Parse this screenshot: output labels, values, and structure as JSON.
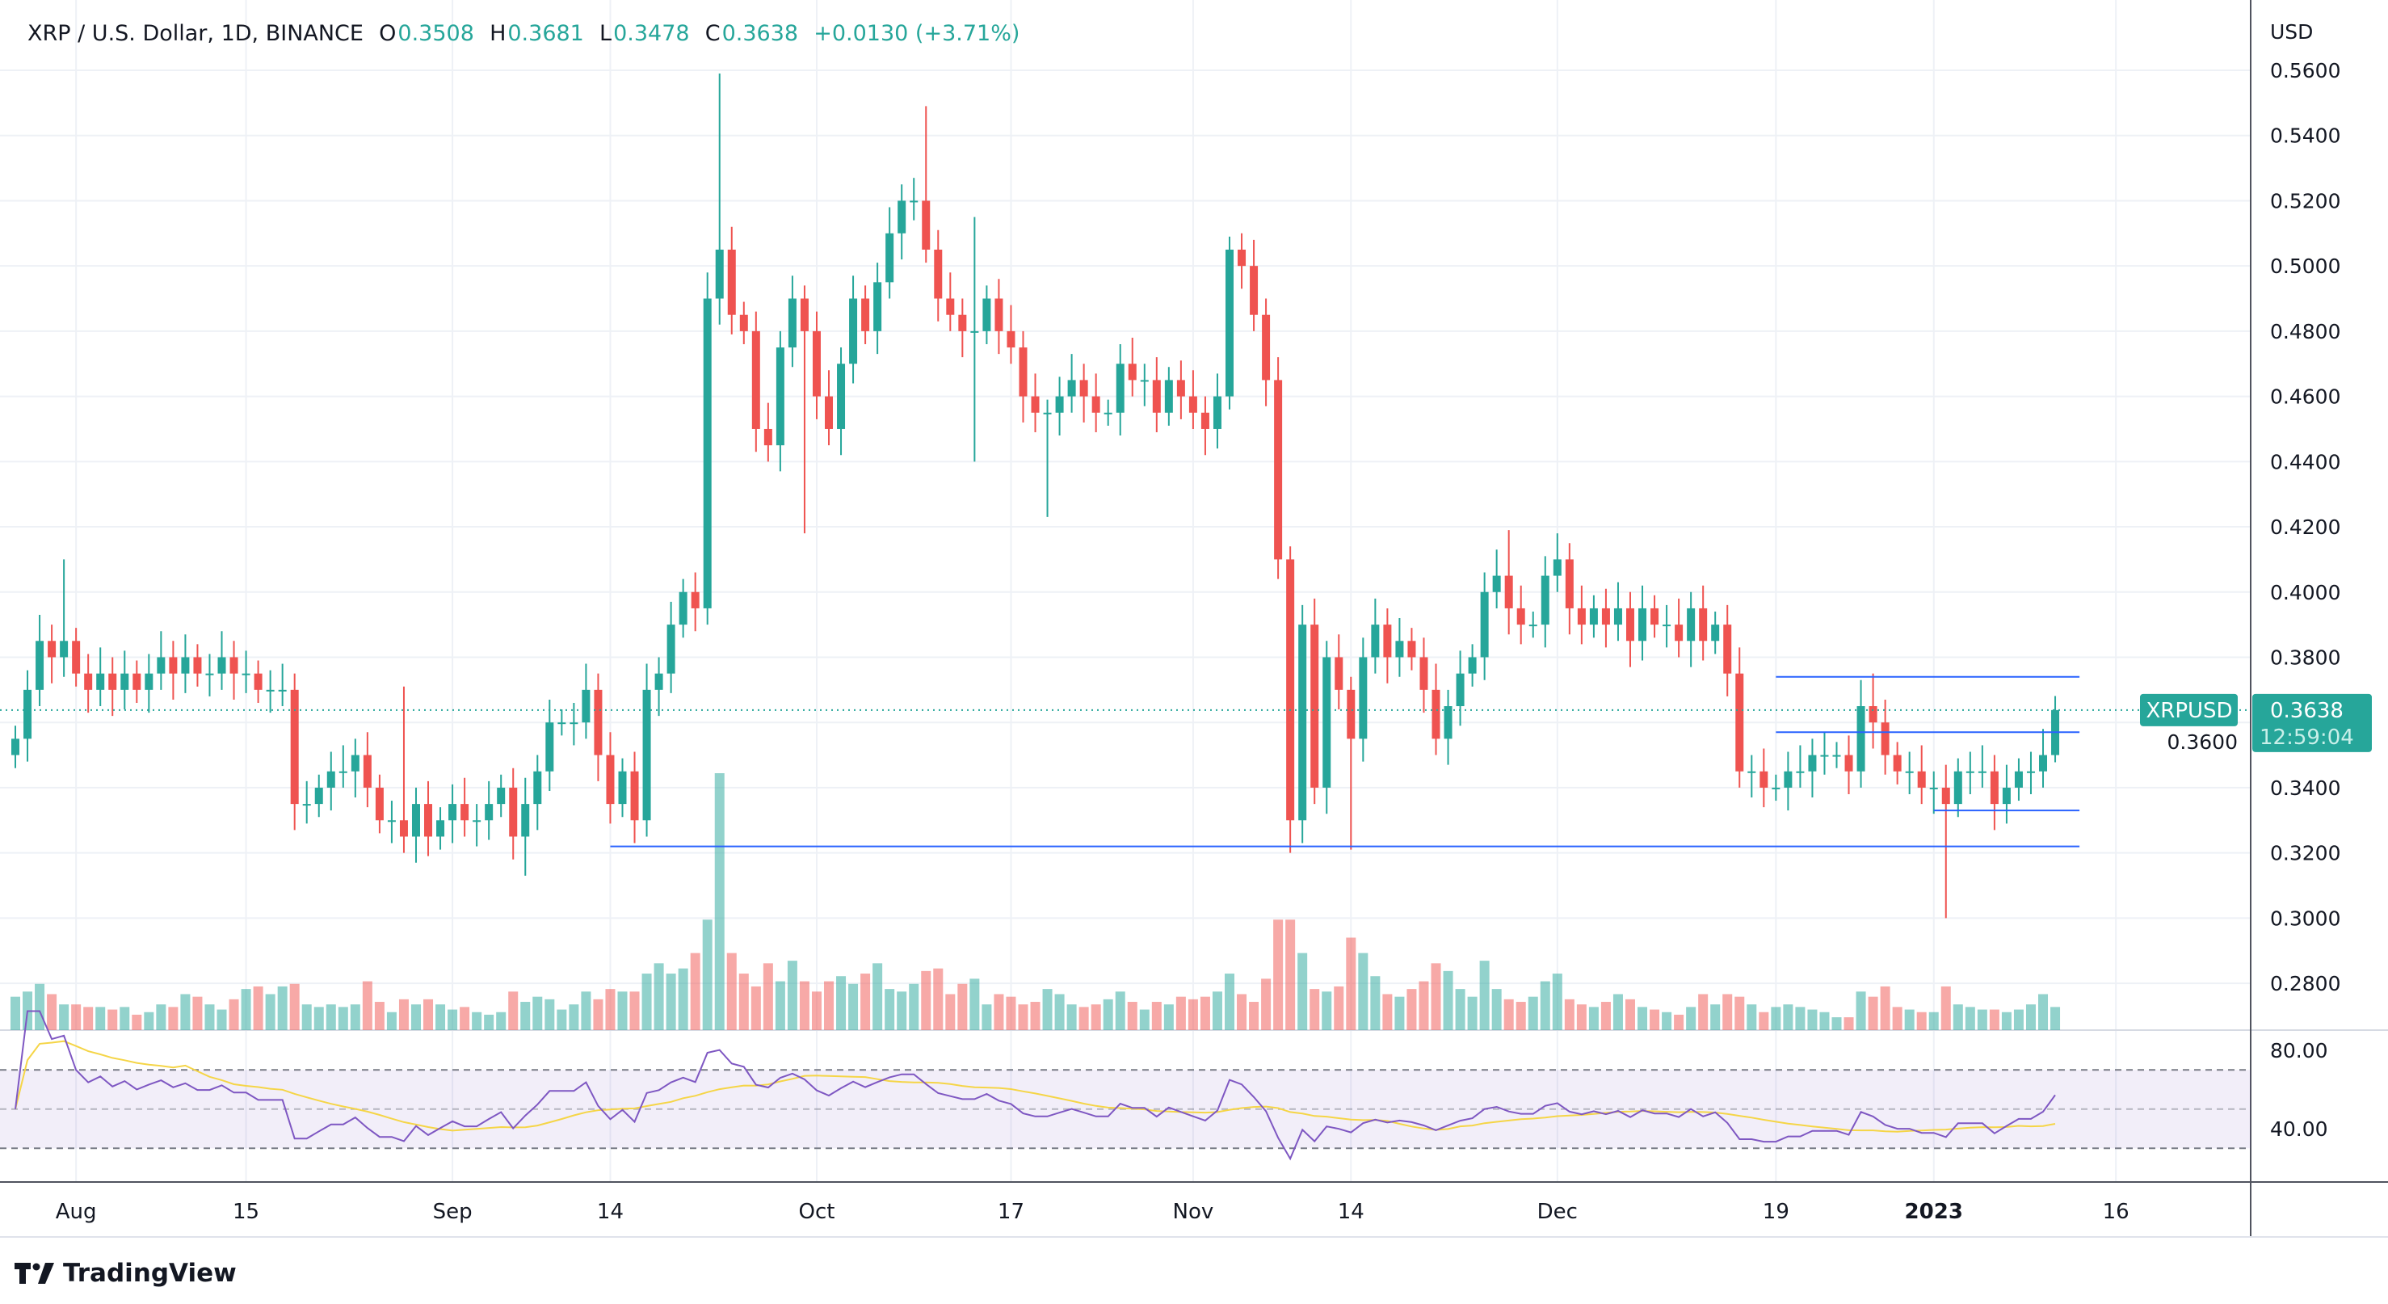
{
  "header": {
    "symbol": "XRP / U.S. Dollar, 1D, BINANCE",
    "o_label": "O",
    "o": "0.3508",
    "h_label": "H",
    "h": "0.3681",
    "l_label": "L",
    "l": "0.3478",
    "c_label": "C",
    "c": "0.3638",
    "change": "+0.0130 (+3.71%)"
  },
  "currency": "USD",
  "last_price": {
    "ticker": "XRPUSD",
    "price": "0.3638",
    "countdown": "12:59:04",
    "value": 0.3638
  },
  "brand": "TradingView",
  "colors": {
    "up": "#26a69a",
    "down": "#ef5350",
    "rsi": "#7e57c2",
    "rsi_ma": "#f5d547",
    "drawing": "#2962ff",
    "grid": "#eef1f6"
  },
  "chart_data": {
    "type": "candlestick",
    "indicators": [
      "Volume",
      "RSI 14 with MA"
    ],
    "price_axis": {
      "ticks": [
        "0.2800",
        "0.3000",
        "0.3200",
        "0.3400",
        "0.3600",
        "0.3800",
        "0.4000",
        "0.4200",
        "0.4400",
        "0.4600",
        "0.4800",
        "0.5000",
        "0.5200",
        "0.5400",
        "0.5600"
      ]
    },
    "rsi_axis": {
      "ticks": [
        "80.00",
        "40.00"
      ],
      "bands": [
        70,
        50,
        30
      ]
    },
    "time_axis": [
      {
        "label": "Aug",
        "date": "2022-08-01"
      },
      {
        "label": "15",
        "date": "2022-08-15"
      },
      {
        "label": "Sep",
        "date": "2022-09-01"
      },
      {
        "label": "14",
        "date": "2022-09-14"
      },
      {
        "label": "Oct",
        "date": "2022-10-01"
      },
      {
        "label": "17",
        "date": "2022-10-17"
      },
      {
        "label": "Nov",
        "date": "2022-11-01"
      },
      {
        "label": "14",
        "date": "2022-11-14"
      },
      {
        "label": "Dec",
        "date": "2022-12-01"
      },
      {
        "label": "19",
        "date": "2022-12-19"
      },
      {
        "label": "2023",
        "date": "2023-01-01",
        "bold": true
      },
      {
        "label": "16",
        "date": "2023-01-16"
      }
    ],
    "candles": [
      {
        "month": "2022-07",
        "from": 27,
        "close": [
          0.355,
          0.37,
          0.385,
          0.38,
          0.385
        ],
        "volume": [
          1.3,
          1.5,
          1.8,
          1.4,
          1.0
        ]
      },
      {
        "month": "2022-08",
        "from": 1,
        "close": [
          0.375,
          0.37,
          0.375,
          0.37,
          0.375,
          0.37,
          0.375,
          0.38,
          0.375,
          0.38,
          0.375,
          0.375,
          0.38,
          0.375,
          0.375,
          0.37,
          0.37,
          0.37,
          0.335,
          0.335,
          0.34,
          0.345,
          0.345,
          0.35,
          0.34,
          0.33,
          0.33,
          0.325,
          0.335,
          0.325,
          0.33
        ],
        "volume": [
          1.0,
          0.9,
          0.9,
          0.8,
          0.9,
          0.6,
          0.7,
          1.0,
          0.9,
          1.4,
          1.3,
          1.0,
          0.8,
          1.2,
          1.6,
          1.7,
          1.4,
          1.7,
          1.8,
          1.0,
          0.9,
          1.0,
          0.9,
          1.0,
          1.9,
          1.1,
          0.7,
          1.2,
          1.0,
          1.2,
          1.0
        ]
      },
      {
        "month": "2022-09",
        "from": 1,
        "close": [
          0.335,
          0.33,
          0.33,
          0.335,
          0.34,
          0.325,
          0.335,
          0.345,
          0.36,
          0.36,
          0.36,
          0.37,
          0.35,
          0.335,
          0.345,
          0.33,
          0.37,
          0.375,
          0.39,
          0.4,
          0.395,
          0.49,
          0.505,
          0.485,
          0.48,
          0.45,
          0.445,
          0.475,
          0.49,
          0.48
        ],
        "volume": [
          0.8,
          0.9,
          0.7,
          0.6,
          0.7,
          1.5,
          1.1,
          1.3,
          1.2,
          0.8,
          1.0,
          1.5,
          1.2,
          1.6,
          1.5,
          1.5,
          2.2,
          2.6,
          2.2,
          2.4,
          3.0,
          4.3,
          10,
          3.0,
          2.2,
          1.7,
          2.6,
          1.9,
          2.7,
          1.9
        ]
      },
      {
        "month": "2022-10",
        "from": 1,
        "close": [
          0.46,
          0.45,
          0.47,
          0.49,
          0.48,
          0.495,
          0.51,
          0.52,
          0.52,
          0.505,
          0.49,
          0.485,
          0.48,
          0.48,
          0.49,
          0.48,
          0.475,
          0.46,
          0.455,
          0.455,
          0.46,
          0.465,
          0.46,
          0.455,
          0.455,
          0.47,
          0.465,
          0.465,
          0.455,
          0.465,
          0.46
        ],
        "volume": [
          1.5,
          1.9,
          2.1,
          1.8,
          2.2,
          2.6,
          1.6,
          1.5,
          1.8,
          2.3,
          2.4,
          1.4,
          1.8,
          2.0,
          1.0,
          1.4,
          1.3,
          1.0,
          1.1,
          1.6,
          1.4,
          1.0,
          0.9,
          1.0,
          1.2,
          1.5,
          1.1,
          0.8,
          1.1,
          1.0,
          1.3
        ]
      },
      {
        "month": "2022-11",
        "from": 1,
        "close": [
          0.455,
          0.45,
          0.46,
          0.505,
          0.5,
          0.485,
          0.465,
          0.41,
          0.33,
          0.39,
          0.34,
          0.38,
          0.37,
          0.355,
          0.38,
          0.39,
          0.38,
          0.385,
          0.38,
          0.37,
          0.355,
          0.365,
          0.375,
          0.38,
          0.4,
          0.405,
          0.395,
          0.39,
          0.39,
          0.405
        ],
        "volume": [
          1.2,
          1.3,
          1.5,
          2.2,
          1.4,
          1.1,
          2.0,
          4.3,
          4.3,
          3.0,
          1.6,
          1.5,
          1.7,
          3.6,
          3.0,
          2.1,
          1.4,
          1.3,
          1.6,
          1.9,
          2.6,
          2.3,
          1.6,
          1.3,
          2.7,
          1.6,
          1.2,
          1.1,
          1.3,
          1.9
        ]
      },
      {
        "month": "2022-12",
        "from": 1,
        "close": [
          0.41,
          0.395,
          0.39,
          0.395,
          0.39,
          0.395,
          0.385,
          0.395,
          0.39,
          0.39,
          0.385,
          0.395,
          0.385,
          0.39,
          0.375,
          0.345,
          0.345,
          0.34,
          0.34,
          0.345,
          0.345,
          0.35,
          0.35,
          0.35,
          0.345,
          0.365,
          0.36,
          0.35,
          0.345,
          0.345,
          0.34
        ],
        "volume": [
          2.2,
          1.2,
          1.0,
          0.9,
          1.1,
          1.4,
          1.2,
          0.9,
          0.8,
          0.7,
          0.6,
          0.9,
          1.4,
          1.0,
          1.4,
          1.3,
          1.0,
          0.7,
          0.9,
          1.0,
          0.9,
          0.8,
          0.7,
          0.5,
          0.5,
          1.5,
          1.3,
          1.7,
          0.9,
          0.8,
          0.7
        ]
      },
      {
        "month": "2023-01",
        "from": 1,
        "close": [
          0.34,
          0.335,
          0.345,
          0.345,
          0.345,
          0.335,
          0.34,
          0.345,
          0.345,
          0.35,
          0.3638
        ],
        "volume": [
          0.7,
          1.7,
          1.0,
          0.9,
          0.8,
          0.8,
          0.7,
          0.8,
          1.0,
          1.4,
          0.9
        ]
      }
    ],
    "wick_extremes": {
      "2022-07-31": {
        "h": 0.41
      },
      "2022-08-28": {
        "h": 0.371
      },
      "2022-09-07": {
        "l": 0.313
      },
      "2022-09-23": {
        "h": 0.559
      },
      "2022-09-30": {
        "l": 0.418
      },
      "2022-10-10": {
        "h": 0.549
      },
      "2022-10-14": {
        "h": 0.515,
        "l": 0.44
      },
      "2022-10-20": {
        "l": 0.423
      },
      "2022-11-05": {
        "h": 0.51
      },
      "2022-11-09": {
        "l": 0.32
      },
      "2022-11-14": {
        "l": 0.321
      },
      "2022-11-27": {
        "h": 0.419
      },
      "2022-12-27": {
        "h": 0.375
      },
      "2023-01-02": {
        "l": 0.3
      },
      "2023-01-11": {
        "h": 0.3681,
        "l": 0.3478
      }
    },
    "drawings": [
      {
        "type": "hline",
        "price": 0.322,
        "from": "2022-09-14",
        "to": "2023-01-13"
      },
      {
        "type": "hline",
        "price": 0.374,
        "from": "2022-12-19",
        "to": "2023-01-13"
      },
      {
        "type": "hline",
        "price": 0.357,
        "from": "2022-12-19",
        "to": "2023-01-13"
      },
      {
        "type": "hline",
        "price": 0.333,
        "from": "2023-01-01",
        "to": "2023-01-13"
      }
    ]
  }
}
